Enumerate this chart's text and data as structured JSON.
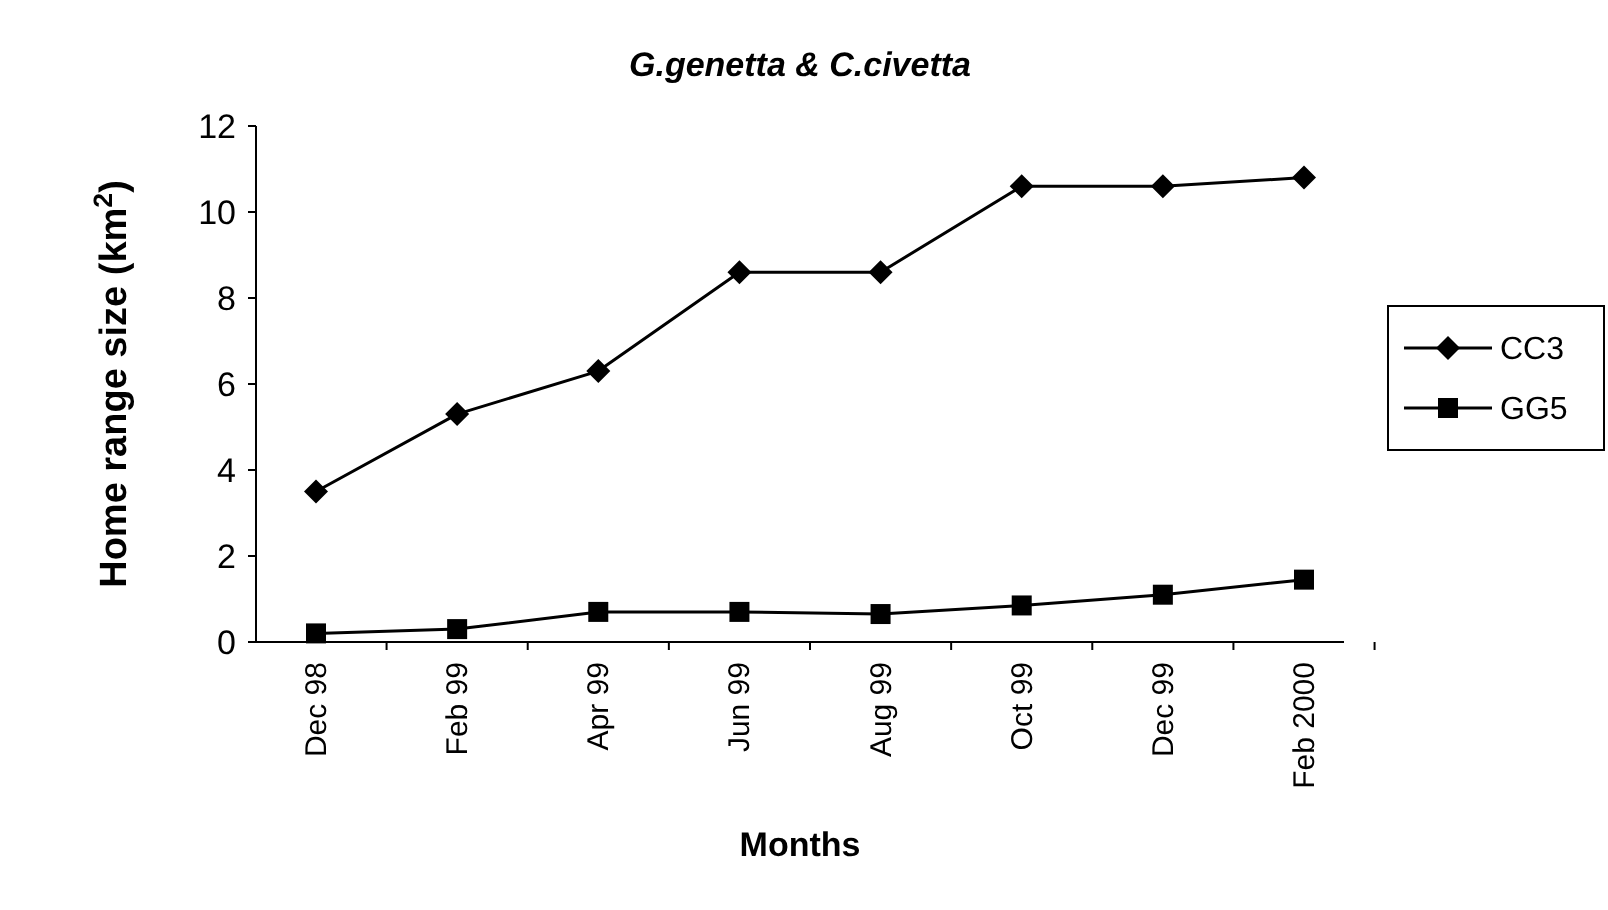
{
  "chart_data": {
    "type": "line",
    "title": "G.genetta & C.civetta",
    "xlabel": "Months",
    "ylabel": "Home range size (km$^{2}$)",
    "categories": [
      "Dec 98",
      "Feb 99",
      "Apr 99",
      "Jun 99",
      "Aug 99",
      "Oct 99",
      "Dec 99",
      "Feb 2000"
    ],
    "series": [
      {
        "name": "CC3",
        "color": "#000000",
        "marker": "diamond",
        "values": [
          3.5,
          5.3,
          6.3,
          8.6,
          8.6,
          10.6,
          10.6,
          10.8
        ]
      },
      {
        "name": "GG5",
        "color": "#000000",
        "marker": "square",
        "values": [
          0.2,
          0.3,
          0.7,
          0.7,
          0.65,
          0.85,
          1.1,
          1.45
        ]
      }
    ],
    "ylim": [
      0,
      12
    ],
    "yticks": [
      0,
      2,
      4,
      6,
      8,
      10,
      12
    ],
    "grid": false,
    "legend": "right"
  }
}
